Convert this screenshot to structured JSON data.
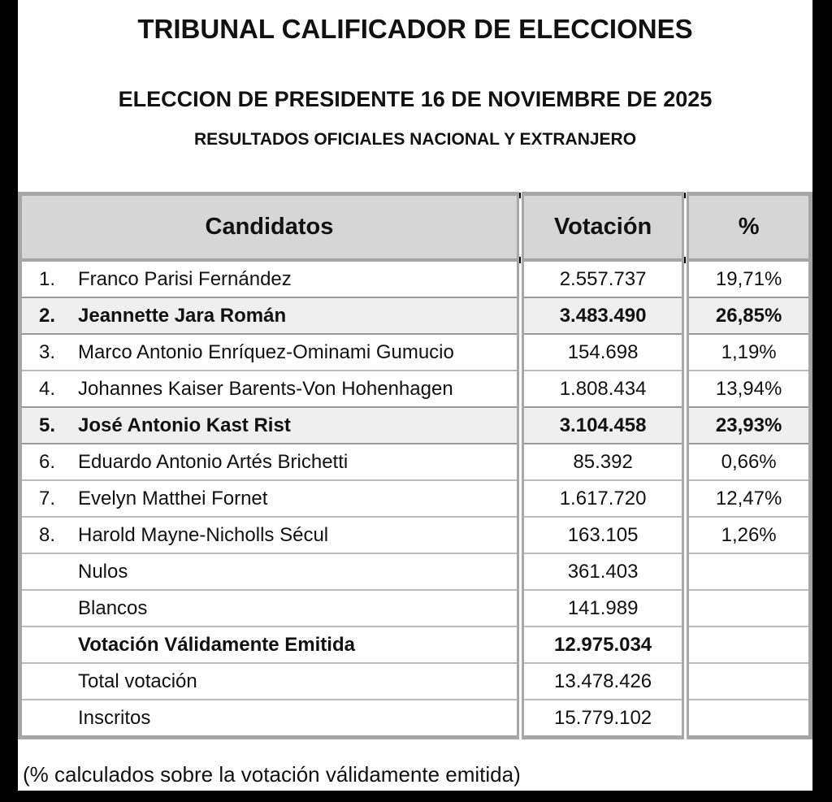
{
  "header": {
    "title": "TRIBUNAL CALIFICADOR DE ELECCIONES",
    "subtitle": "ELECCION DE PRESIDENTE 16 DE NOVIEMBRE DE 2025",
    "results_note": "RESULTADOS OFICIALES NACIONAL Y EXTRANJERO"
  },
  "table": {
    "columns": [
      "Candidatos",
      "Votación",
      "%"
    ],
    "rows": [
      {
        "num": "1.",
        "name": "Franco Parisi Fernández",
        "votes": "2.557.737",
        "percent": "19,71%",
        "bold": false,
        "highlight": false
      },
      {
        "num": "2.",
        "name": "Jeannette Jara Román",
        "votes": "3.483.490",
        "percent": "26,85%",
        "bold": true,
        "highlight": true
      },
      {
        "num": "3.",
        "name": "Marco Antonio Enríquez-Ominami Gumucio",
        "votes": "154.698",
        "percent": "1,19%",
        "bold": false,
        "highlight": false
      },
      {
        "num": "4.",
        "name": "Johannes Kaiser Barents-Von Hohenhagen",
        "votes": "1.808.434",
        "percent": "13,94%",
        "bold": false,
        "highlight": false
      },
      {
        "num": "5.",
        "name": "José Antonio Kast Rist",
        "votes": "3.104.458",
        "percent": "23,93%",
        "bold": true,
        "highlight": true
      },
      {
        "num": "6.",
        "name": "Eduardo Antonio Artés Brichetti",
        "votes": "85.392",
        "percent": "0,66%",
        "bold": false,
        "highlight": false
      },
      {
        "num": "7.",
        "name": "Evelyn Matthei Fornet",
        "votes": "1.617.720",
        "percent": "12,47%",
        "bold": false,
        "highlight": false
      },
      {
        "num": "8.",
        "name": "Harold Mayne-Nicholls Sécul",
        "votes": "163.105",
        "percent": "1,26%",
        "bold": false,
        "highlight": false
      },
      {
        "num": "",
        "name": "Nulos",
        "votes": "361.403",
        "percent": "",
        "bold": false,
        "highlight": false
      },
      {
        "num": "",
        "name": "Blancos",
        "votes": "141.989",
        "percent": "",
        "bold": false,
        "highlight": false
      },
      {
        "num": "",
        "name": "Votación Válidamente Emitida",
        "votes": "12.975.034",
        "percent": "",
        "bold": true,
        "highlight": false
      },
      {
        "num": "",
        "name": "Total votación",
        "votes": "13.478.426",
        "percent": "",
        "bold": false,
        "highlight": false
      },
      {
        "num": "",
        "name": "Inscritos",
        "votes": "15.779.102",
        "percent": "",
        "bold": false,
        "highlight": false
      }
    ]
  },
  "footnote": "(% calculados sobre la votación válidamente emitida)",
  "colors": {
    "frame_bars": "#000000",
    "header_bg": "#d6d6d6",
    "highlight_row_bg": "#efefef",
    "table_border": "#a6a6a6",
    "text": "#111111"
  }
}
